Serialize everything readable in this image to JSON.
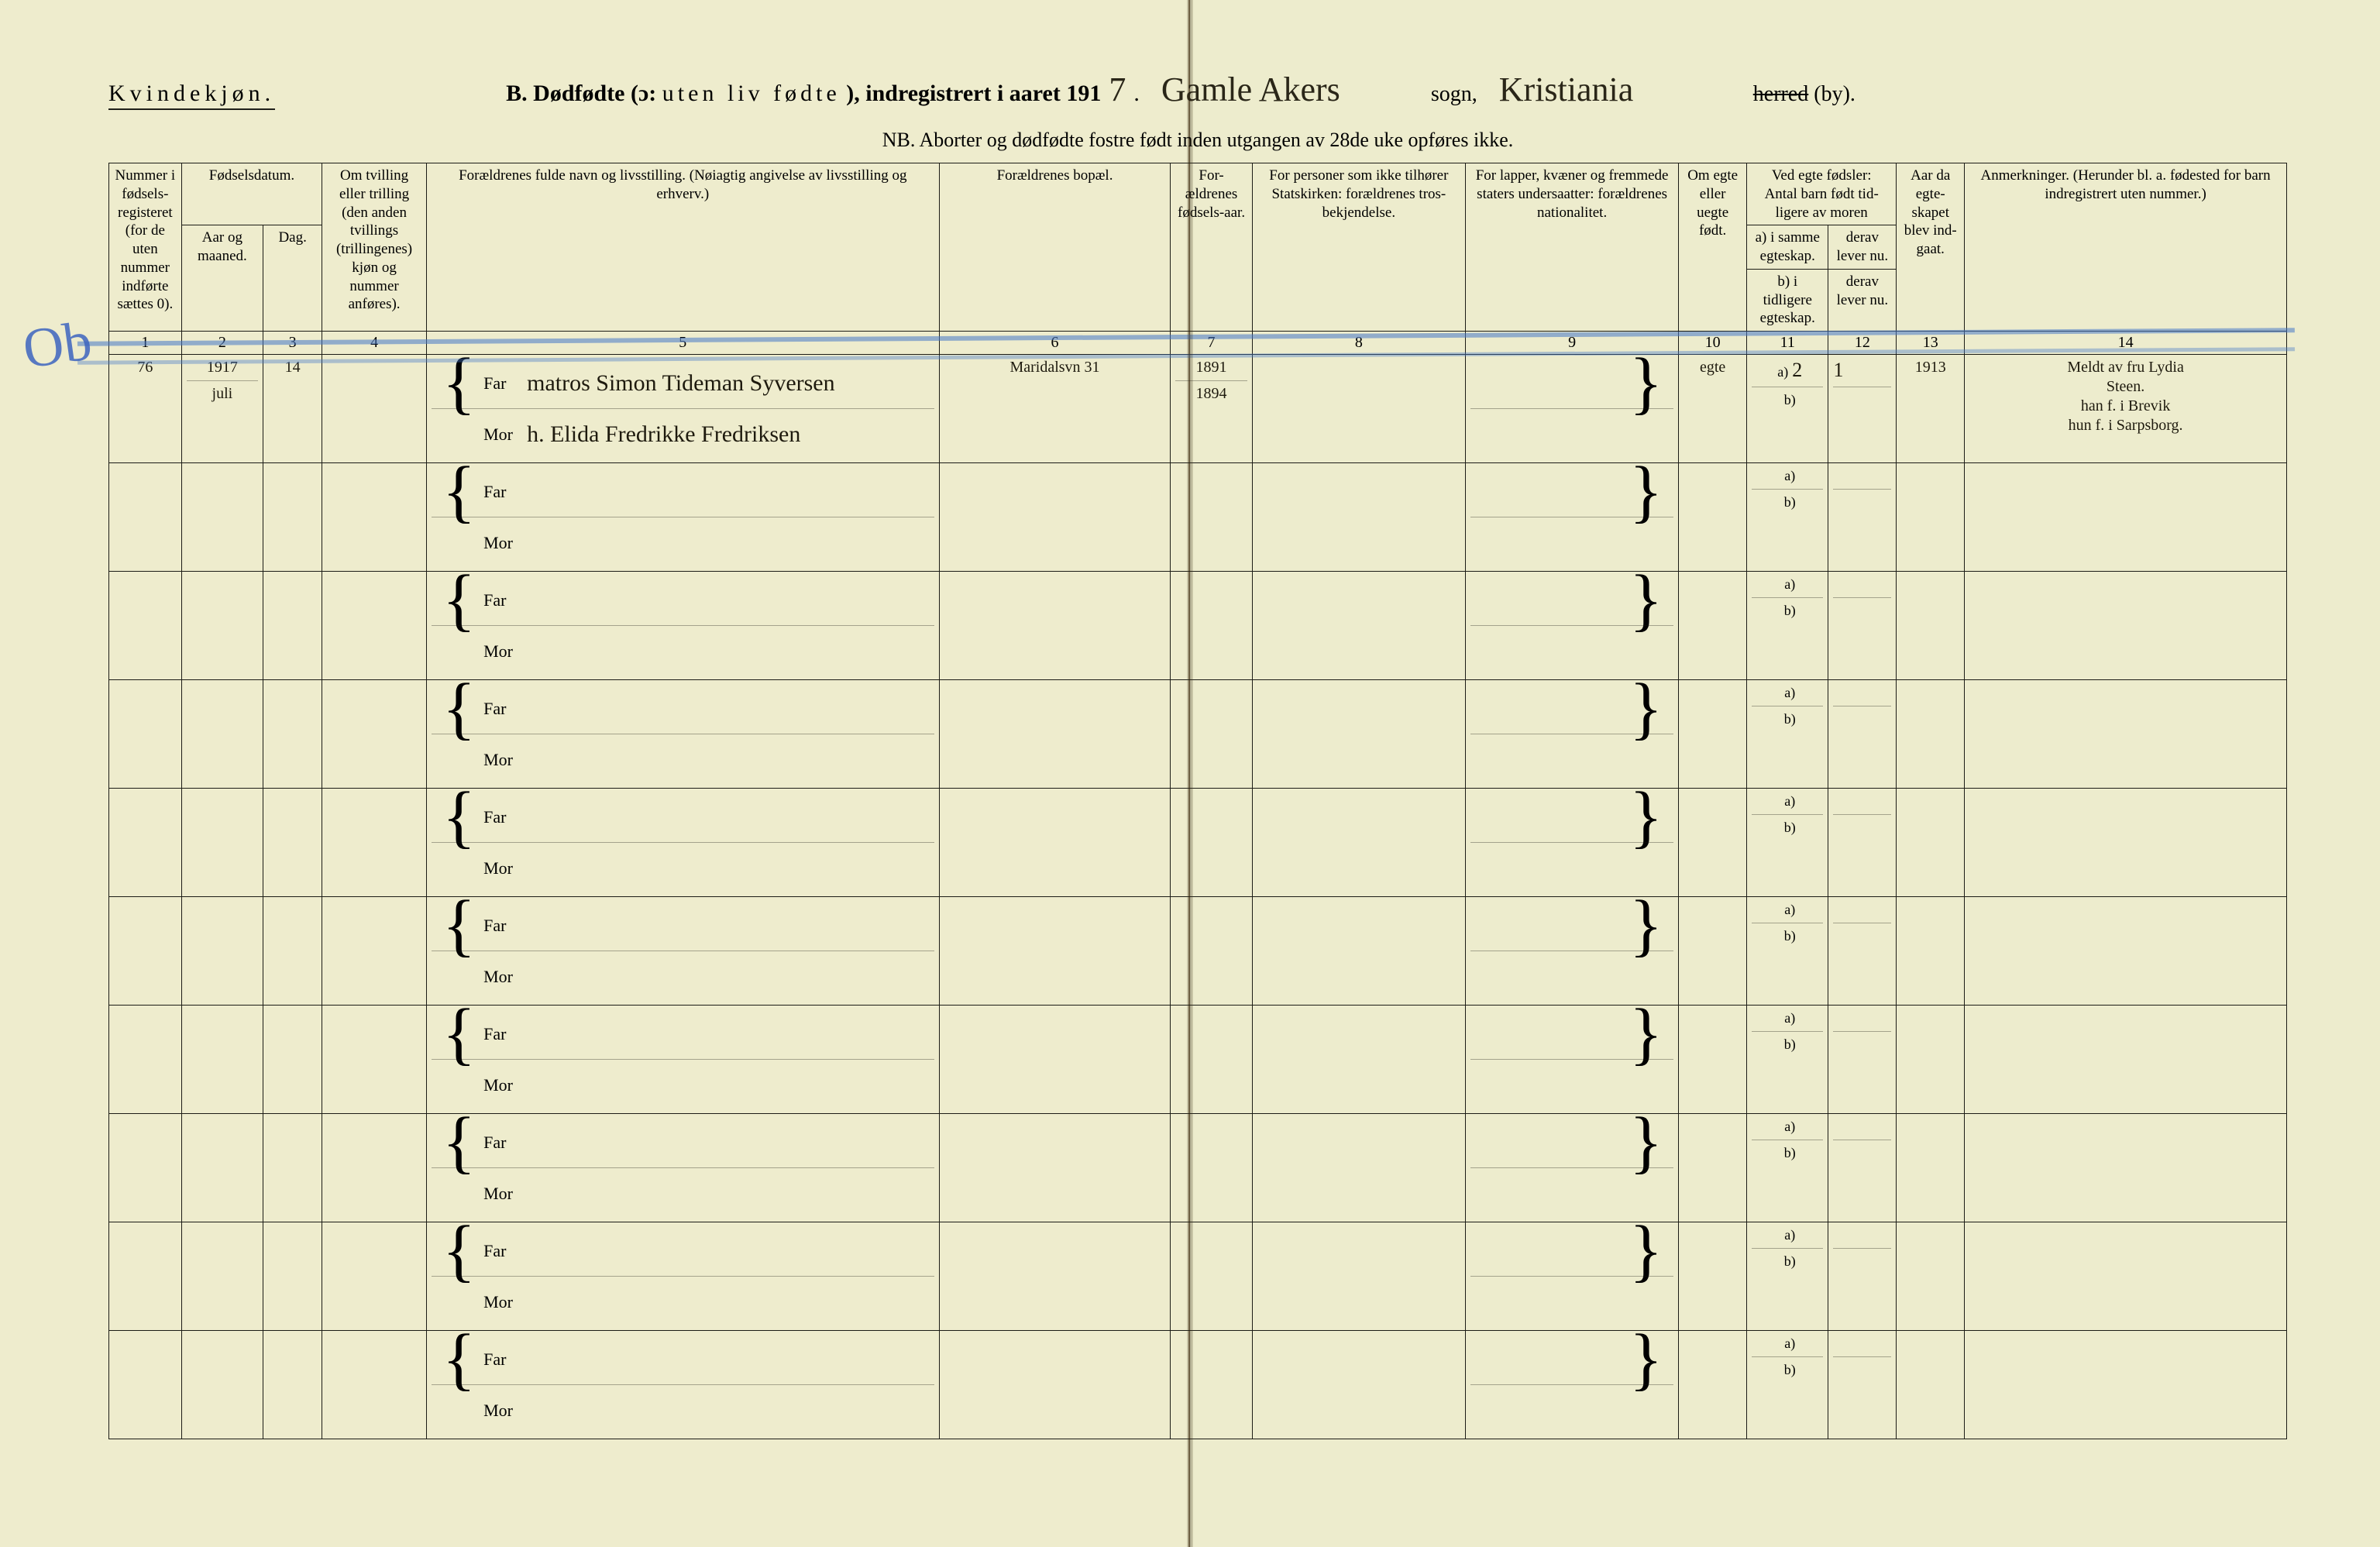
{
  "page": {
    "bg_left": "#eeeccd",
    "bg_right": "#edeccd",
    "ink": "#1c1c14",
    "rule": "#1c1c16",
    "script_color": "#2a2618",
    "blue": "#5a86c8"
  },
  "header": {
    "gender": "Kvindekjøn.",
    "title_prefix": "B. Dødfødte (ɔ:",
    "title_spaced": "uten liv fødte",
    "title_suffix": "), indregistrert i aaret 191",
    "year_digit": "7",
    "parish_hand": "Gamle Akers",
    "label_sogn": "sogn,",
    "district_hand": "Kristiania",
    "label_herred_strike": "herred",
    "label_by": "(by).",
    "nb": "NB.  Aborter og dødfødte fostre født inden utgangen av 28de uke opføres ikke."
  },
  "columns": {
    "c1": "Nummer i fødsels-registeret (for de uten nummer indførte sættes 0).",
    "c2_group": "Fødselsdatum.",
    "c2a": "Aar og maaned.",
    "c2b": "Dag.",
    "c4": "Om tvilling eller trilling (den anden tvillings (trillingenes) kjøn og nummer anføres).",
    "c5": "Forældrenes fulde navn og livsstilling.\n(Nøiagtig angivelse av livsstilling og erhverv.)",
    "c6": "Forældrenes bopæl.",
    "c7": "For-ældrenes fødsels-aar.",
    "c8": "For personer som ikke tilhører Statskirken: forældrenes tros-bekjendelse.",
    "c9": "For lapper, kvæner og fremmede staters undersaatter: forældrenes nationalitet.",
    "c10": "Om egte eller uegte født.",
    "c11_group_top": "Ved egte fødsler:",
    "c11_group_sub": "Antal barn født tid-ligere av moren",
    "c11a": "a) i samme egteskap.",
    "c11b": "b) i tidligere egteskap.",
    "c12a": "derav lever nu.",
    "c12b": "derav lever nu.",
    "c13": "Aar da egte-skapet blev ind-gaat.",
    "c14": "Anmerkninger.\n(Herunder bl. a. fødested for barn indregistrert uten nummer.)",
    "far": "Far",
    "mor": "Mor",
    "nums": [
      "1",
      "2",
      "3",
      "4",
      "5",
      "6",
      "7",
      "8",
      "9",
      "10",
      "11",
      "12",
      "13",
      "14"
    ]
  },
  "entry": {
    "margin_mark": "Ob",
    "num": "76",
    "year_month_top": "1917",
    "year_month_bot": "juli",
    "day": "14",
    "far_text": "matros Simon Tideman Syversen",
    "mor_text": "h. Elida Fredrikke Fredriksen",
    "address": "Maridalsvn 31",
    "far_birth": "1891",
    "mor_birth": "1894",
    "legit": "egte",
    "c11a_val": "2",
    "c12a_val": "1",
    "c13_val": "1913",
    "remarks_1": "Meldt av fru Lydia",
    "remarks_2": "Steen.",
    "remarks_3": "han f. i Brevik",
    "remarks_4": "hun f. i Sarpsborg."
  },
  "row_count_blank": 9,
  "ab_labels": {
    "a": "a)",
    "b": "b)"
  }
}
